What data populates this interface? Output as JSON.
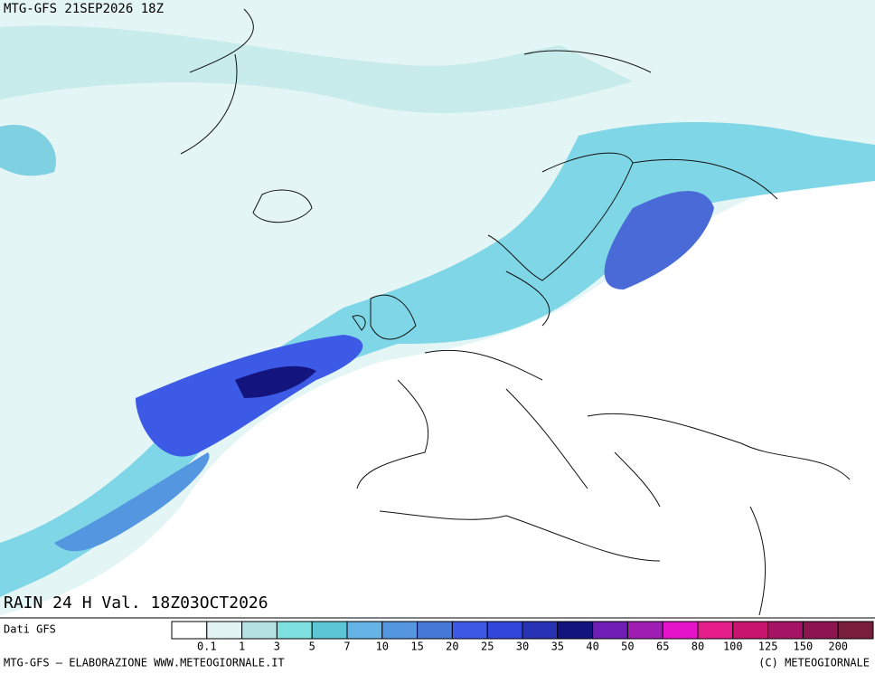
{
  "header": {
    "title": "MTG-GFS 21SEP2026 18Z"
  },
  "map": {
    "label": "RAIN 24 H Val. 18Z03OCT2026"
  },
  "legend": {
    "source": "Dati GFS",
    "ticks": [
      0.1,
      1,
      3,
      5,
      7,
      10,
      15,
      20,
      25,
      30,
      35,
      40,
      50,
      65,
      80,
      100,
      125,
      150,
      200
    ],
    "colors": [
      "#ffffff",
      "#e1f3f3",
      "#b4e1e1",
      "#7fe0e0",
      "#5cc6d6",
      "#64b4e8",
      "#5596e0",
      "#4678d8",
      "#3c5ae6",
      "#3246dc",
      "#2832b4",
      "#14147f",
      "#6e1eb4",
      "#a01eb4",
      "#e614c8",
      "#e61e8c",
      "#c8146e",
      "#a51464",
      "#8c1450",
      "#781e3c"
    ]
  },
  "footer": {
    "left": "MTG-GFS — ELABORAZIONE WWW.METEOGIORNALE.IT",
    "right": "(C) METEOGIORNALE"
  }
}
